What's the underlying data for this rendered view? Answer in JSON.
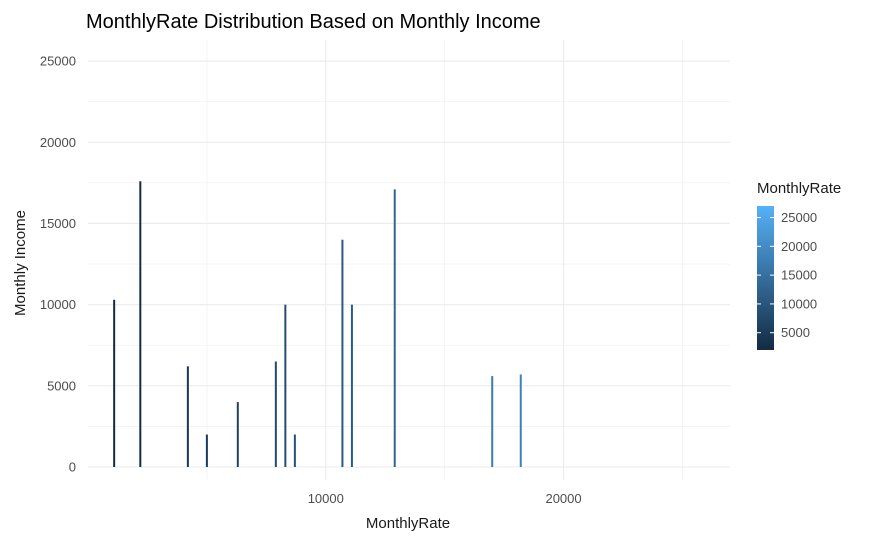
{
  "chart_data": {
    "type": "bar",
    "title": "MonthlyRate Distribution Based on Monthly Income",
    "xlabel": "MonthlyRate",
    "ylabel": "Monthly Income",
    "xlim": [
      0,
      27000
    ],
    "ylim": [
      -800,
      26300
    ],
    "x_ticks": [
      10000,
      20000
    ],
    "x_tick_labels": [
      "10000",
      "20000"
    ],
    "x_minor_grid": [
      5000,
      15000,
      25000
    ],
    "y_ticks": [
      0,
      5000,
      10000,
      15000,
      20000,
      25000
    ],
    "y_tick_labels": [
      "0",
      "5000",
      "10000",
      "15000",
      "20000",
      "25000"
    ],
    "grid": true,
    "color_scale": {
      "variable": "MonthlyRate",
      "low_color": "#132B43",
      "high_color": "#56B1F7",
      "range": [
        2000,
        27000
      ],
      "breaks": [
        5000,
        10000,
        15000,
        20000,
        25000
      ],
      "break_labels": [
        "5000",
        "10000",
        "15000",
        "20000",
        "25000"
      ],
      "legend_position": "right"
    },
    "x": [
      1100,
      2200,
      4200,
      5000,
      6300,
      7900,
      8300,
      8700,
      10700,
      11100,
      12900,
      17000,
      18200
    ],
    "values": [
      10300,
      17600,
      6200,
      2000,
      4000,
      6500,
      10000,
      2000,
      14000,
      10000,
      17100,
      5600,
      5700
    ]
  }
}
